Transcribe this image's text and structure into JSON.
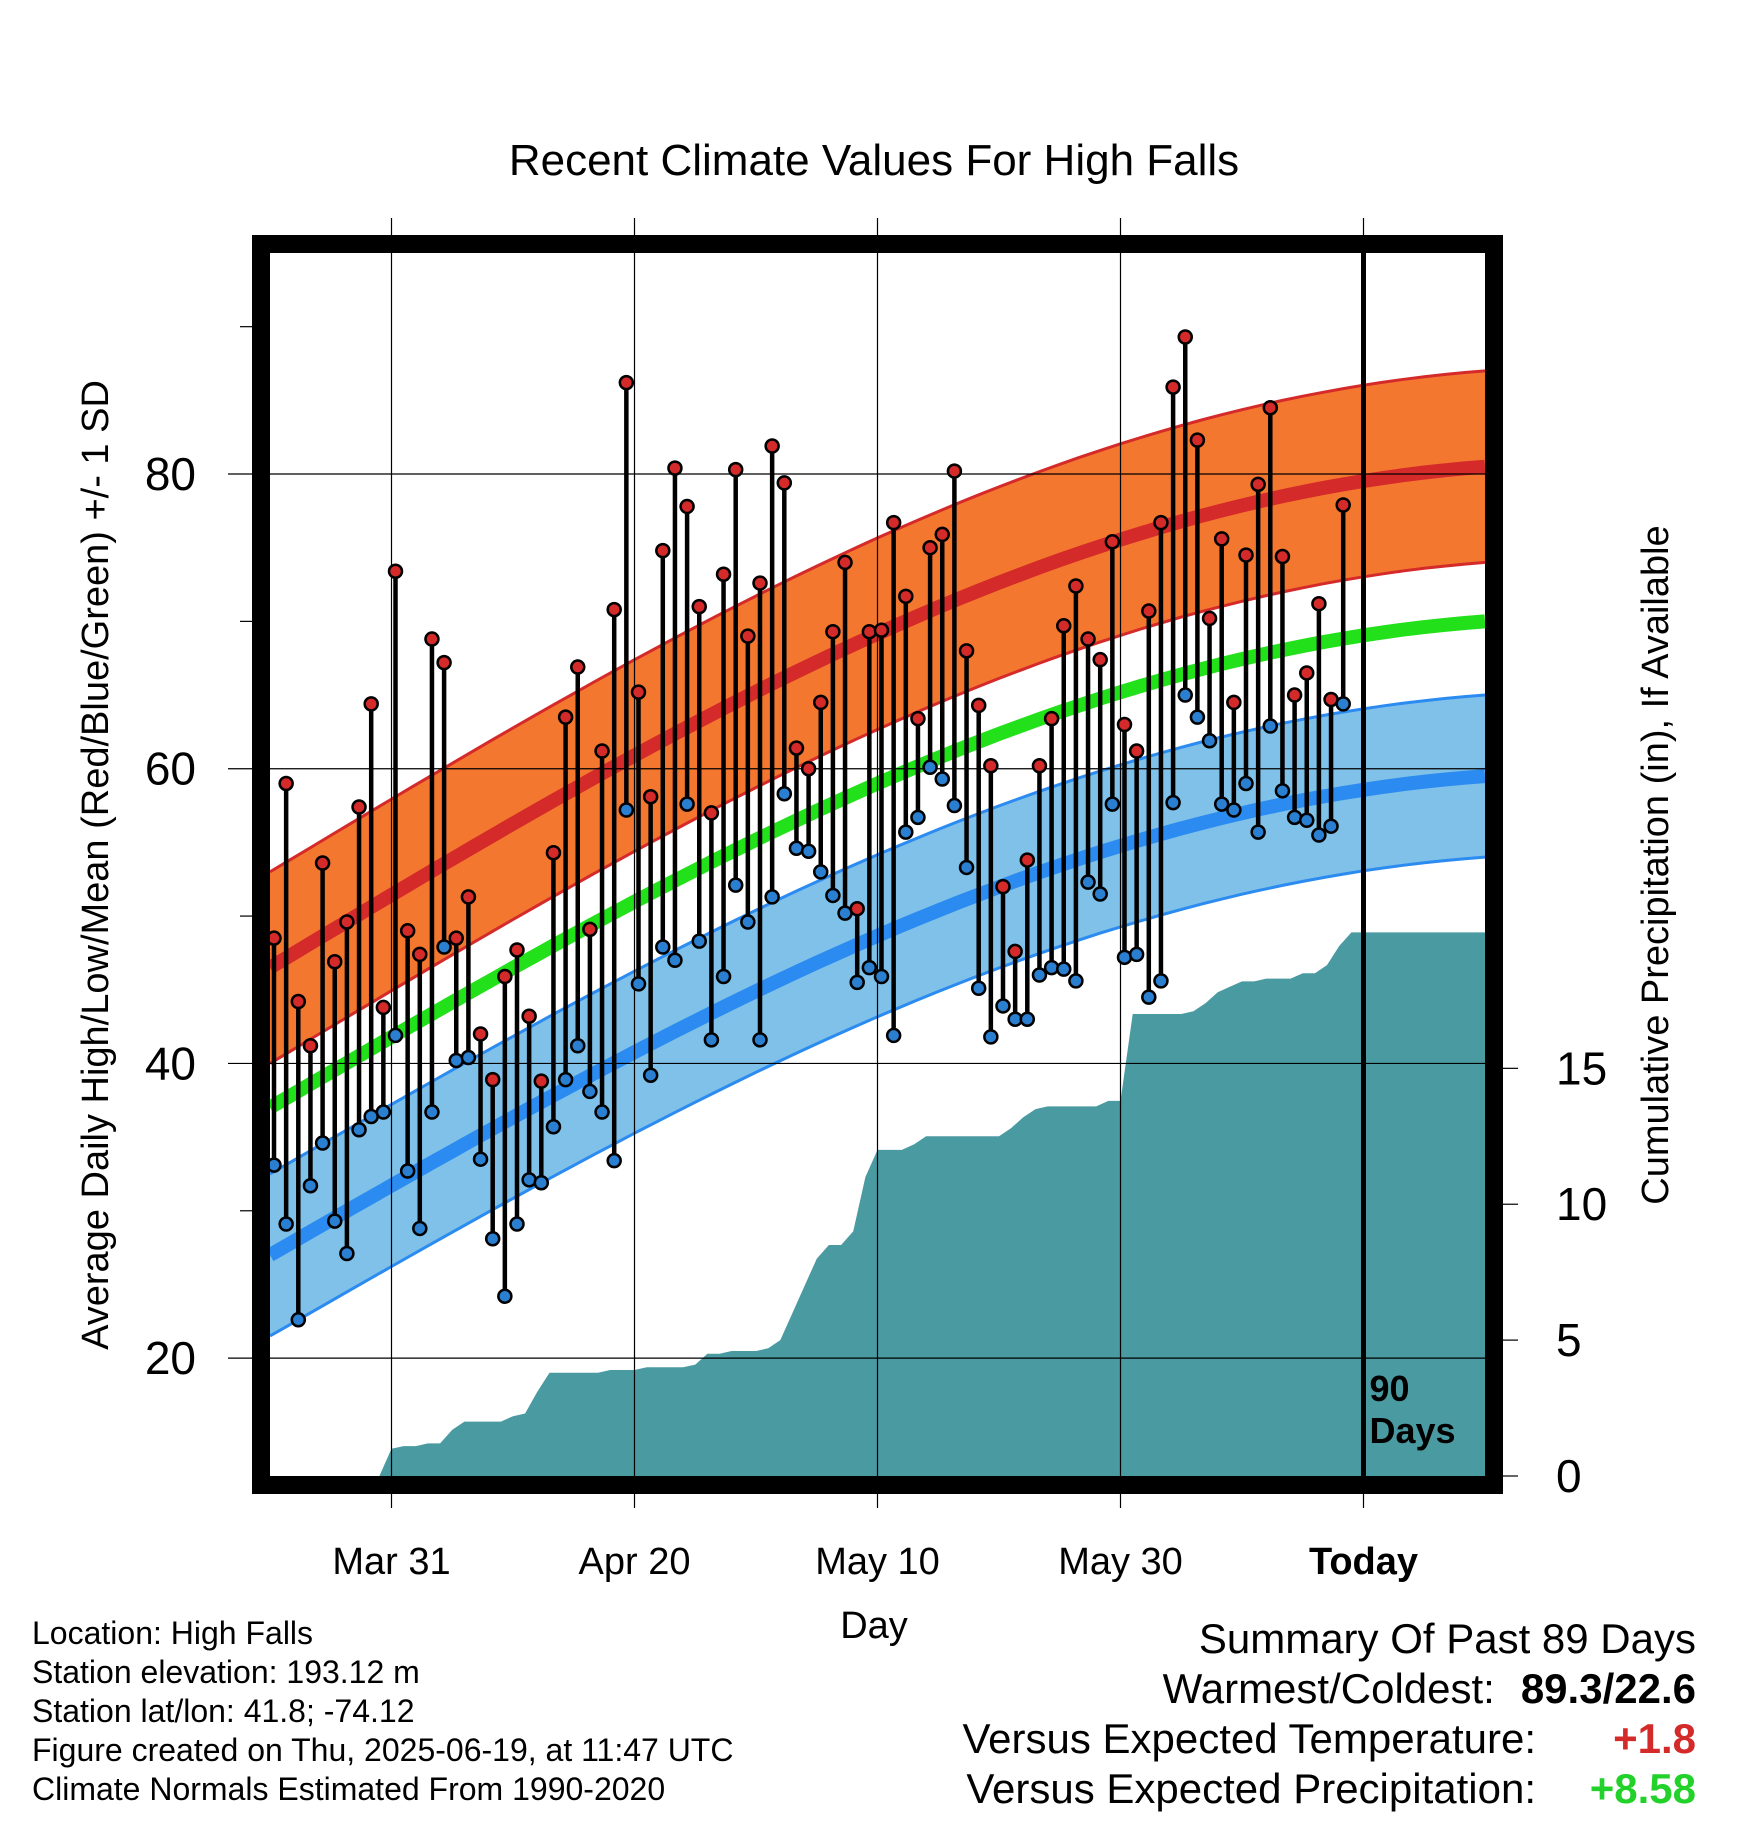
{
  "chart_data": {
    "type": "line",
    "title": "Recent Climate Values For High Falls",
    "xlabel": "Day",
    "ylabel_left": "Average Daily High/Low/Mean (Red/Blue/Green) +/- 1 SD",
    "ylabel_right": "Cumulative Precipitation (in), If Available",
    "x_ticks": [
      "Mar 31",
      "Apr 20",
      "May 10",
      "May 30",
      "Today"
    ],
    "ylim_left": [
      12,
      95
    ],
    "y_ticks_left": [
      20,
      40,
      60,
      80
    ],
    "ylim_right": [
      0,
      45
    ],
    "y_ticks_right": [
      0,
      5,
      10,
      15
    ],
    "marker_label": "90\nDays",
    "days_total": 100,
    "today_index": 90,
    "normals": {
      "high_start": 46.5,
      "high_end": 80.5,
      "low_start": 27.0,
      "low_end": 59.5,
      "mean_start": 37.0,
      "mean_end": 70.0,
      "high_sd": 6.5,
      "low_sd": 5.5
    },
    "daily_high": [
      48.5,
      59,
      44.2,
      41.2,
      53.6,
      46.9,
      49.6,
      57.4,
      64.4,
      43.8,
      73.4,
      49,
      47.4,
      68.8,
      67.2,
      48.5,
      51.3,
      42,
      38.9,
      45.9,
      47.7,
      43.2,
      38.8,
      54.3,
      63.5,
      66.9,
      49.1,
      61.2,
      70.8,
      86.2,
      65.2,
      58.1,
      74.8,
      80.4,
      77.8,
      71,
      57,
      73.2,
      80.3,
      69,
      72.6,
      81.9,
      79.4,
      61.4,
      60,
      64.5,
      69.3,
      74,
      50.5,
      69.3,
      69.4,
      76.7,
      71.7,
      63.4,
      75,
      75.9,
      80.2,
      68,
      64.3,
      60.2,
      52,
      47.6,
      53.8,
      60.2,
      63.4,
      69.7,
      72.4,
      68.8,
      67.4,
      75.4,
      63,
      61.2,
      70.7,
      76.7,
      85.9,
      89.3,
      82.3,
      70.2,
      75.6,
      64.5,
      74.5,
      79.3,
      84.5,
      74.4,
      65,
      66.5,
      71.2,
      64.7,
      77.9
    ],
    "daily_low": [
      33.1,
      29.1,
      22.6,
      31.7,
      34.6,
      29.3,
      27.1,
      35.5,
      36.4,
      36.7,
      41.9,
      32.7,
      28.8,
      36.7,
      47.9,
      40.2,
      40.4,
      33.5,
      28.1,
      24.2,
      29.1,
      32.1,
      31.9,
      35.7,
      38.9,
      41.2,
      38.1,
      36.7,
      33.4,
      57.2,
      45.4,
      39.2,
      47.9,
      47.0,
      57.6,
      48.3,
      41.6,
      45.9,
      52.1,
      49.6,
      41.6,
      51.3,
      58.3,
      54.6,
      54.4,
      53.0,
      51.4,
      50.2,
      45.5,
      46.5,
      45.9,
      41.9,
      55.7,
      56.7,
      60.1,
      59.3,
      57.5,
      53.3,
      45.1,
      41.8,
      43.9,
      43.0,
      43.0,
      46.0,
      46.5,
      46.4,
      45.6,
      52.3,
      51.5,
      57.6,
      47.2,
      47.4,
      44.5,
      45.6,
      57.7,
      65.0,
      63.5,
      61.9,
      57.6,
      57.2,
      59.0,
      55.7,
      62.9,
      58.5,
      56.7,
      56.5,
      55.5,
      56.1,
      64.4
    ],
    "cumulative_precip": [
      0,
      0,
      0,
      0,
      0,
      0,
      0,
      0,
      0,
      0,
      1.0,
      1.1,
      1.1,
      1.2,
      1.2,
      1.7,
      2.0,
      2.0,
      2.0,
      2.0,
      2.2,
      2.3,
      3.1,
      3.8,
      3.8,
      3.8,
      3.8,
      3.8,
      3.9,
      3.9,
      3.9,
      4.0,
      4.0,
      4.0,
      4.0,
      4.1,
      4.5,
      4.5,
      4.6,
      4.6,
      4.6,
      4.7,
      5.0,
      6.0,
      7.0,
      8.0,
      8.5,
      8.5,
      9.0,
      11.0,
      12.0,
      12.0,
      12.0,
      12.2,
      12.5,
      12.5,
      12.5,
      12.5,
      12.5,
      12.5,
      12.5,
      12.8,
      13.2,
      13.5,
      13.6,
      13.6,
      13.6,
      13.6,
      13.6,
      13.8,
      13.8,
      17.0,
      17.0,
      17.0,
      17.0,
      17.0,
      17.1,
      17.4,
      17.8,
      18.0,
      18.2,
      18.2,
      18.3,
      18.3,
      18.3,
      18.5,
      18.5,
      18.8,
      19.5,
      20.0,
      20.0,
      20.0,
      20.0,
      20.0,
      20.0,
      20.0,
      20.0,
      20.0,
      20.0,
      20.0
    ]
  },
  "info": {
    "location": "Location: High Falls",
    "elevation": "Station elevation: 193.12 m",
    "latlon": "Station lat/lon: 41.8; -74.12",
    "created": "Figure created on Thu, 2025-06-19, at 11:47 UTC",
    "normals": "Climate Normals Estimated From 1990-2020"
  },
  "summary": {
    "title": "Summary Of Past 89 Days",
    "warm_cold_label": "Warmest/Coldest:",
    "warm_cold_value": "89.3/22.6",
    "temp_label": "Versus Expected Temperature:",
    "temp_value": "+1.8",
    "precip_label": "Versus Expected Precipitation:",
    "precip_value": "+8.58"
  },
  "colors": {
    "high_band": "#f47730",
    "high_line": "#d42a2a",
    "low_band": "#7fc1e8",
    "low_line": "#2b8bf0",
    "mean_line": "#22e01a",
    "precip_fill": "#4a9aa2",
    "high_dot": "#d42a2a",
    "low_dot": "#2a7fd0",
    "temp_value": "#d42a2a",
    "precip_value": "#22d12a"
  }
}
